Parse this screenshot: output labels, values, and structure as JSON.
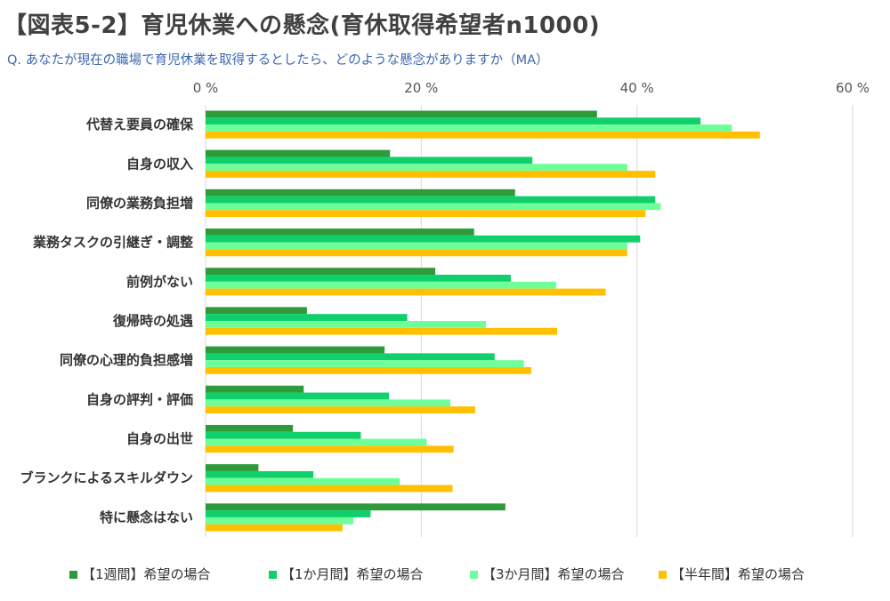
{
  "title": "【図表5-2】育児休業への懸念(育休取得希望者n1000)",
  "question": "Q.  あなたが現在の職場で育児休業を取得するとしたら、どのような懸念がありますか（MA）",
  "chart_data": {
    "type": "bar",
    "orientation": "horizontal",
    "xlim": [
      0,
      60
    ],
    "xticks": [
      0,
      20,
      40,
      60
    ],
    "xtick_labels": [
      "0 %",
      "20 %",
      "40 %",
      "60 %"
    ],
    "grid": true,
    "legend_position": "bottom",
    "categories": [
      "代替え要員の確保",
      "自身の収入",
      "同僚の業務負担増",
      "業務タスクの引継ぎ・調整",
      "前例がない",
      "復帰時の処遇",
      "同僚の心理的負担感増",
      "自身の評判・評価",
      "自身の出世",
      "ブランクによるスキルダウン",
      "特に懸念はない"
    ],
    "series": [
      {
        "name": "【1週間】希望の場合",
        "color": "#2e9b3a",
        "values": [
          36.3,
          17.1,
          28.7,
          24.9,
          21.3,
          9.4,
          16.6,
          9.1,
          8.1,
          4.9,
          27.8
        ]
      },
      {
        "name": "【1か月間】希望の場合",
        "color": "#0fd06a",
        "values": [
          45.9,
          30.3,
          41.7,
          40.3,
          28.3,
          18.7,
          26.8,
          17.0,
          14.4,
          10.0,
          15.3
        ]
      },
      {
        "name": "【3か月間】希望の場合",
        "color": "#6fff9a",
        "values": [
          48.8,
          39.1,
          42.2,
          39.1,
          32.5,
          26.0,
          29.5,
          22.7,
          20.5,
          18.0,
          13.7
        ]
      },
      {
        "name": "【半年間】希望の場合",
        "color": "#ffc000",
        "values": [
          51.4,
          41.7,
          40.8,
          39.1,
          37.1,
          32.6,
          30.2,
          25.0,
          23.0,
          22.9,
          12.7
        ]
      }
    ]
  }
}
